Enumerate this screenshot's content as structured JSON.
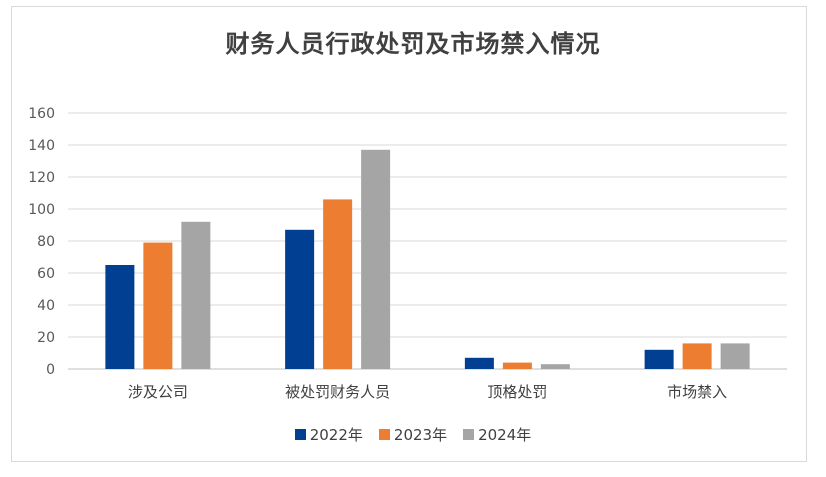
{
  "chart_data": {
    "type": "bar",
    "title": "财务人员行政处罚及市场禁入情况",
    "categories": [
      "涉及公司",
      "被处罚财务人员",
      "顶格处罚",
      "市场禁入"
    ],
    "series": [
      {
        "name": "2022年",
        "values": [
          65,
          87,
          7,
          12
        ],
        "color": "#003f91"
      },
      {
        "name": "2023年",
        "values": [
          79,
          106,
          4,
          16
        ],
        "color": "#ed7d31"
      },
      {
        "name": "2024年",
        "values": [
          92,
          137,
          3,
          16
        ],
        "color": "#a5a5a5"
      }
    ],
    "ylim": [
      0,
      160
    ],
    "yticks": [
      "0",
      "20",
      "40",
      "60",
      "80",
      "100",
      "120",
      "140",
      "160"
    ],
    "grid": true,
    "legend_position": "bottom"
  }
}
